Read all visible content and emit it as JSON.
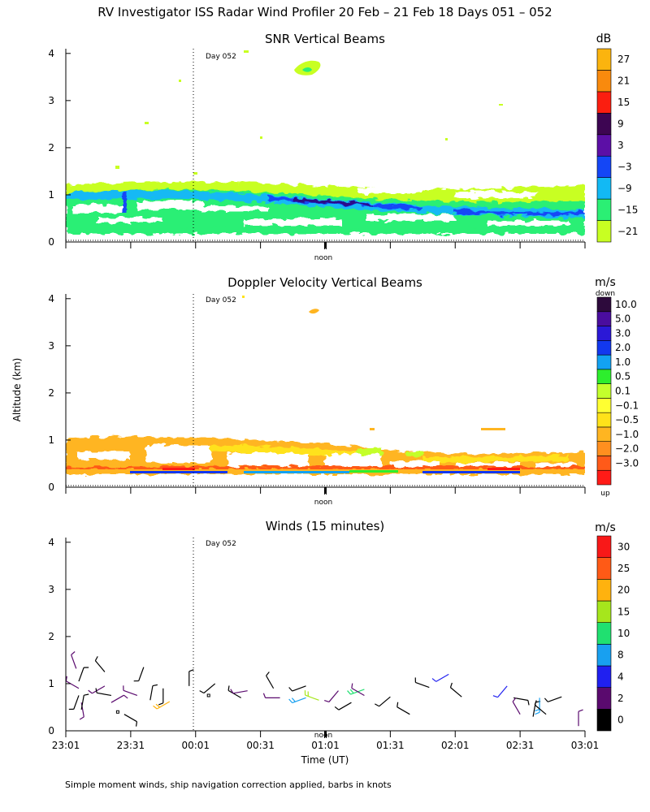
{
  "header": {
    "title": "RV Investigator ISS Radar Wind Profiler  20 Feb – 21 Feb 18 Days 051 – 052"
  },
  "footer": {
    "note": "Simple moment winds, ship navigation correction applied, barbs in knots"
  },
  "axes": {
    "ylabel": "Altitude (km)",
    "xlabel": "Time (UT)",
    "yticks": [
      "0",
      "1",
      "2",
      "3",
      "4"
    ],
    "ylim_km": [
      0,
      4.1
    ],
    "xlim_hours_after_2301": [
      0,
      4
    ],
    "xticks": [
      "23:01",
      "23:31",
      "00:01",
      "00:31",
      "01:01",
      "01:31",
      "02:01",
      "02:31",
      "03:01"
    ],
    "noon_label": "noon",
    "noon_hours_after_2301": 2,
    "day_label": "Day 052",
    "day_boundary_hours_after_2301": 1
  },
  "colors": {
    "snr_scale": [
      "#c8ff22",
      "#2bef74",
      "#12b9f4",
      "#1446f6",
      "#5c0fa6",
      "#3d0552",
      "#fb1e10",
      "#f98a0d",
      "#fbb40e"
    ],
    "dop_scale": [
      "#ff1b17",
      "#ff5a19",
      "#ff8f1f",
      "#ffb521",
      "#ffe21a",
      "#ffff32",
      "#c4ff2c",
      "#2dee2d",
      "#12a2f2",
      "#1238ef",
      "#2b18d6",
      "#4a0d9e",
      "#2d0a3c"
    ],
    "wind_scale": [
      "#000000",
      "#5a0a6e",
      "#2020f0",
      "#18a0f0",
      "#20e070",
      "#a6e61c",
      "#ffb20e",
      "#ff5a16",
      "#f81818"
    ]
  },
  "panels": {
    "snr": {
      "title": "SNR Vertical Beams",
      "unit": "dB",
      "colorbar_ticks": [
        "27",
        "21",
        "15",
        "9",
        "3",
        "−3",
        "−9",
        "−15",
        "−21"
      ]
    },
    "doppler": {
      "title": "Doppler Velocity Vertical Beams",
      "unit": "m/s",
      "colorbar_top": "down",
      "colorbar_bottom": "up",
      "colorbar_ticks": [
        "10.0",
        "5.0",
        "3.0",
        "2.0",
        "1.0",
        "0.5",
        "0.1",
        "−0.1",
        "−0.5",
        "−1.0",
        "−2.0",
        "−3.0"
      ]
    },
    "winds": {
      "title": "Winds (15 minutes)",
      "unit": "m/s",
      "colorbar_ticks": [
        "30",
        "25",
        "20",
        "15",
        "10",
        "8",
        "4",
        "2",
        "0"
      ]
    }
  },
  "chart_data": [
    {
      "type": "heatmap",
      "title": "SNR Vertical Beams",
      "xlabel": "Time (UT)",
      "ylabel": "Altitude (km)",
      "ylim": [
        0,
        4.1
      ],
      "units": "dB",
      "levels": [
        -21,
        -15,
        -9,
        -3,
        3,
        9,
        15,
        21,
        27
      ],
      "features": [
        {
          "name": "near-surface echo layer",
          "altitude_km": [
            0.15,
            1.2
          ],
          "snr_db_range": [
            -21,
            -3
          ]
        },
        {
          "name": "strong boundary-layer top band",
          "start_km": 0.95,
          "end_km": 0.65,
          "snr_db_range": [
            -9,
            3
          ]
        },
        {
          "name": "isolated echo near day 052 ~01:10",
          "altitude_km": 3.7,
          "snr_db": -21
        }
      ]
    },
    {
      "type": "heatmap",
      "title": "Doppler Velocity Vertical Beams",
      "xlabel": "Time (UT)",
      "ylabel": "Altitude (km)",
      "ylim": [
        0,
        4.1
      ],
      "units": "m/s",
      "levels": [
        -3.0,
        -2.0,
        -1.0,
        -0.5,
        -0.1,
        0.1,
        0.5,
        1.0,
        2.0,
        3.0,
        5.0,
        10.0
      ],
      "features": [
        {
          "name": "weak updraft layer",
          "altitude_km": [
            0.3,
            1.05
          ],
          "velocity_ms_range": [
            -1.0,
            -0.1
          ]
        },
        {
          "name": "mixed up/down near surface",
          "altitude_km": [
            0.15,
            0.35
          ],
          "velocity_ms_range": [
            -3.0,
            3.0
          ]
        },
        {
          "name": "isolated echo near ~01:10",
          "altitude_km": 3.6,
          "velocity_ms": -0.5
        }
      ]
    },
    {
      "type": "scatter",
      "title": "Winds (15 minutes)",
      "xlabel": "Time (UT)",
      "ylabel": "Altitude (km)",
      "ylim": [
        0,
        4.1
      ],
      "units": "m/s",
      "levels": [
        0,
        2,
        4,
        8,
        10,
        15,
        20,
        25,
        30
      ],
      "series": [
        {
          "name": "wind barbs",
          "fields": [
            "hours_after_2301",
            "altitude_km",
            "speed_ms",
            "dir_deg"
          ],
          "values": [
            [
              0.08,
              1.32,
              2,
              340
            ],
            [
              0.1,
              1.05,
              1,
              20
            ],
            [
              0.1,
              0.9,
              2,
              300
            ],
            [
              0.1,
              0.75,
              1,
              200
            ],
            [
              0.12,
              0.6,
              2,
              170
            ],
            [
              0.12,
              0.45,
              1,
              10
            ],
            [
              0.3,
              1.25,
              1,
              320
            ],
            [
              0.3,
              0.95,
              2,
              240
            ],
            [
              0.35,
              0.75,
              1,
              280
            ],
            [
              0.35,
              0.6,
              2,
              60
            ],
            [
              0.4,
              0.4,
              0,
              0
            ],
            [
              0.45,
              0.35,
              1,
              120
            ],
            [
              0.6,
              1.35,
              1,
              200
            ],
            [
              0.55,
              0.75,
              2,
              290
            ],
            [
              0.65,
              0.65,
              1,
              10
            ],
            [
              0.8,
              0.62,
              20,
              240
            ],
            [
              0.75,
              0.9,
              1,
              180
            ],
            [
              0.95,
              0.95,
              1,
              0
            ],
            [
              1.1,
              0.75,
              0,
              0
            ],
            [
              1.15,
              1.0,
              1,
              230
            ],
            [
              1.35,
              0.7,
              1,
              300
            ],
            [
              1.4,
              0.85,
              2,
              260
            ],
            [
              1.6,
              0.9,
              1,
              330
            ],
            [
              1.65,
              0.7,
              2,
              270
            ],
            [
              1.85,
              0.95,
              1,
              250
            ],
            [
              1.85,
              0.7,
              8,
              250
            ],
            [
              1.95,
              0.65,
              15,
              290
            ],
            [
              2.1,
              0.85,
              2,
              220
            ],
            [
              2.2,
              0.6,
              1,
              240
            ],
            [
              2.3,
              0.88,
              10,
              250
            ],
            [
              2.3,
              0.75,
              2,
              300
            ],
            [
              2.5,
              0.72,
              1,
              230
            ],
            [
              2.65,
              0.35,
              1,
              300
            ],
            [
              2.8,
              0.92,
              1,
              290
            ],
            [
              2.95,
              1.2,
              4,
              240
            ],
            [
              3.05,
              0.72,
              1,
              310
            ],
            [
              3.4,
              0.95,
              4,
              220
            ],
            [
              3.45,
              0.7,
              1,
              100
            ],
            [
              3.5,
              0.35,
              2,
              330
            ],
            [
              3.6,
              0.3,
              1,
              10
            ],
            [
              3.65,
              0.7,
              8,
              180
            ],
            [
              3.7,
              0.35,
              1,
              310
            ],
            [
              3.82,
              0.72,
              1,
              250
            ],
            [
              3.95,
              0.1,
              2,
              0
            ]
          ]
        }
      ]
    }
  ]
}
